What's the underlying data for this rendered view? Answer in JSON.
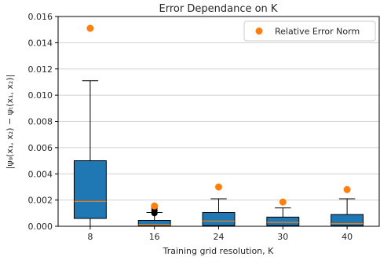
{
  "chart_data": {
    "type": "box",
    "title": "Error Dependance on K",
    "xlabel": "Training grid resolution, K",
    "ylabel": "|ψ₉(x₁, x₂) − ψₜ(x₁, x₂)|",
    "categories": [
      "8",
      "16",
      "24",
      "30",
      "40"
    ],
    "ylim": [
      0,
      0.016
    ],
    "yticks": [
      "0.000",
      "0.002",
      "0.004",
      "0.006",
      "0.008",
      "0.010",
      "0.012",
      "0.014",
      "0.016"
    ],
    "grid": "horizontal",
    "legend_position": "top-right",
    "legend_entries": [
      "Relative Error Norm"
    ],
    "boxes": [
      {
        "category": "8",
        "whisker_low": 0.0,
        "q1": 0.0006,
        "median": 0.0019,
        "q3": 0.005,
        "whisker_high": 0.0111,
        "outliers": []
      },
      {
        "category": "16",
        "whisker_low": 0.0,
        "q1": 3e-05,
        "median": 0.00012,
        "q3": 0.00045,
        "whisker_high": 0.00105,
        "outliers": [
          0.001,
          0.0012,
          0.0014
        ]
      },
      {
        "category": "24",
        "whisker_low": 0.0,
        "q1": 5e-05,
        "median": 0.0004,
        "q3": 0.00105,
        "whisker_high": 0.0021,
        "outliers": []
      },
      {
        "category": "30",
        "whisker_low": 0.0,
        "q1": 5e-05,
        "median": 0.0003,
        "q3": 0.0007,
        "whisker_high": 0.0014,
        "outliers": []
      },
      {
        "category": "40",
        "whisker_low": 0.0,
        "q1": 5e-05,
        "median": 0.0002,
        "q3": 0.0009,
        "whisker_high": 0.0021,
        "outliers": []
      }
    ],
    "relative_error_norm": {
      "name": "Relative Error Norm",
      "x": [
        "8",
        "16",
        "24",
        "30",
        "40"
      ],
      "values": [
        0.0151,
        0.00155,
        0.003,
        0.00185,
        0.0028
      ]
    },
    "colors": {
      "box": "#1f77b4",
      "median": "#ff7f0e",
      "points": "#ff7f0e",
      "outlier": "#000000",
      "grid": "#d0d0d0",
      "axis": "#000000"
    }
  }
}
